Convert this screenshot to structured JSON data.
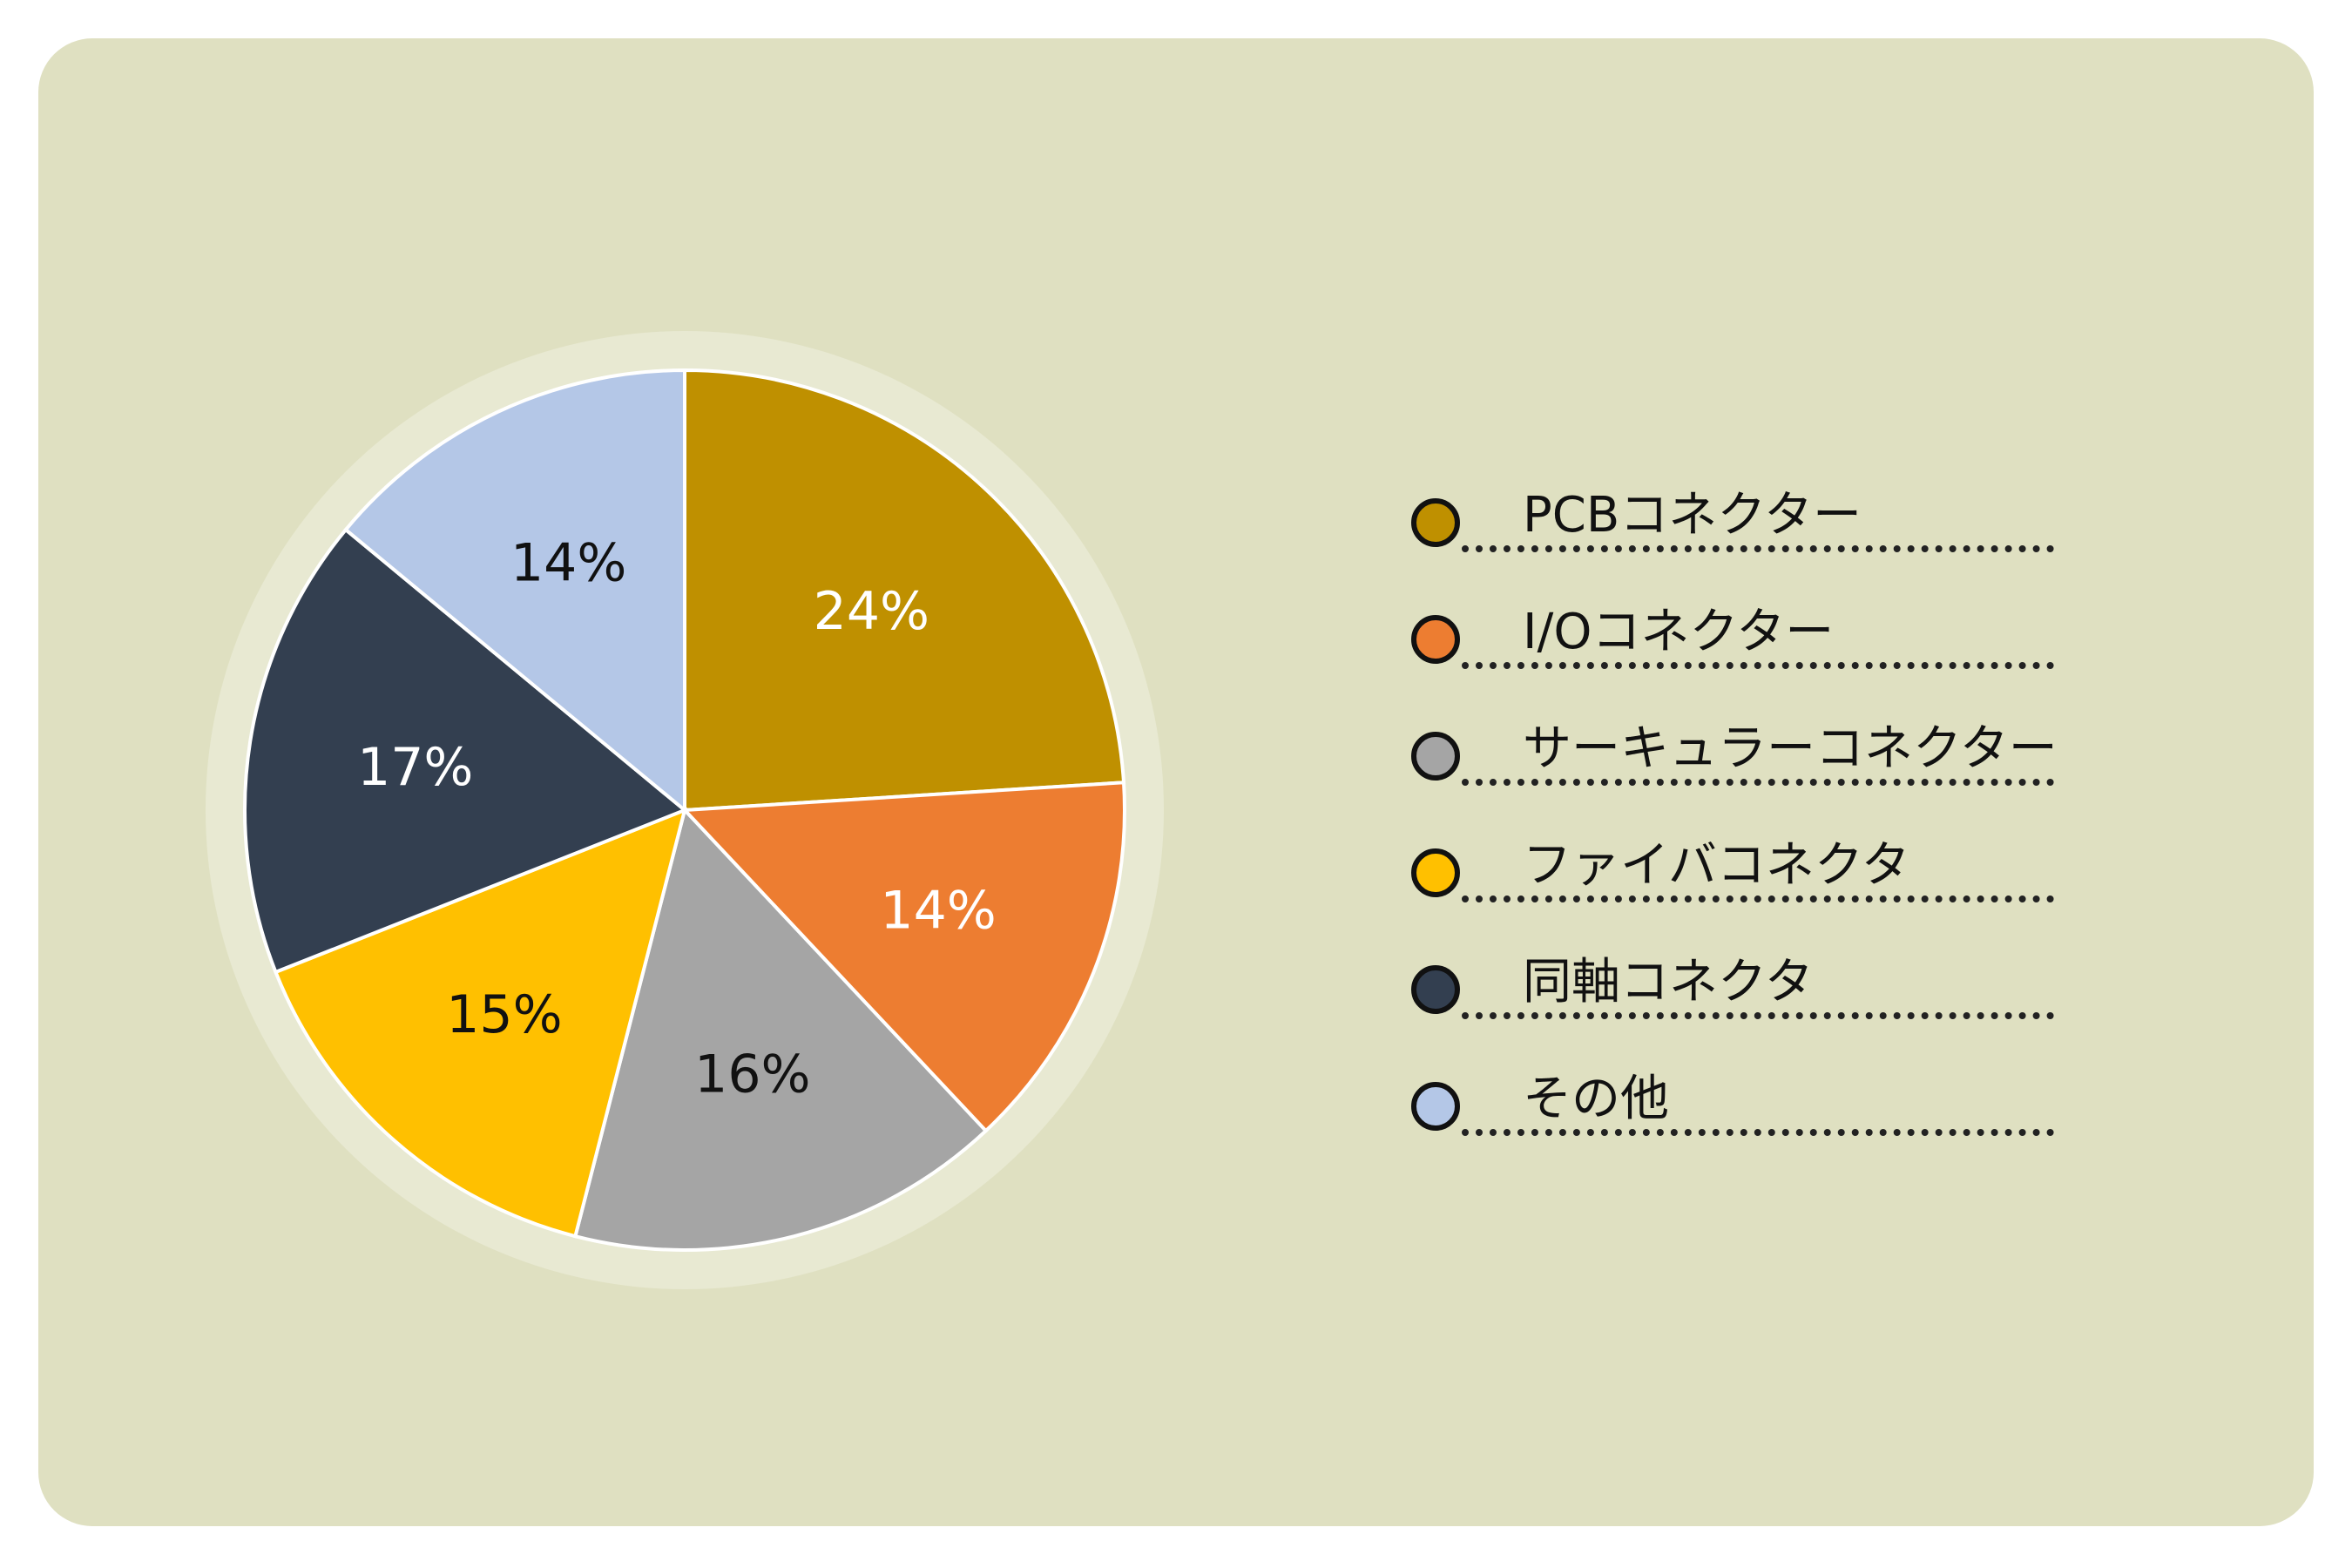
{
  "chart_data": {
    "type": "pie",
    "slices": [
      {
        "label": "PCBコネクター",
        "value": 24,
        "value_label": "24%",
        "color": "#bf9000"
      },
      {
        "label": "I/Oコネクター",
        "value": 14,
        "value_label": "14%",
        "color": "#ed7d31"
      },
      {
        "label": "サーキュラーコネクター",
        "value": 16,
        "value_label": "16%",
        "color": "#a5a5a5"
      },
      {
        "label": "ファイバコネクタ",
        "value": 15,
        "value_label": "15%",
        "color": "#ffc000"
      },
      {
        "label": "同軸コネクタ",
        "value": 17,
        "value_label": "17%",
        "color": "#333f50"
      },
      {
        "label": "その他",
        "value": 14,
        "value_label": "14%",
        "color": "#b4c7e7"
      }
    ],
    "legend_position": "right",
    "start_angle": "12 o'clock",
    "direction": "clockwise"
  },
  "legend": {
    "items": [
      {
        "label": "PCBコネクター",
        "color": "#bf9000"
      },
      {
        "label": "I/Oコネクター",
        "color": "#ed7d31"
      },
      {
        "label": "サーキュラーコネクター",
        "color": "#a5a5a5"
      },
      {
        "label": "ファイバコネクタ",
        "color": "#ffc000"
      },
      {
        "label": "同軸コネクタ",
        "color": "#333f50"
      },
      {
        "label": "その他",
        "color": "#b4c7e7"
      }
    ]
  },
  "style": {
    "background": "#ffffff",
    "panel": "#dfe0c1",
    "ring": "#e8e9d2"
  }
}
